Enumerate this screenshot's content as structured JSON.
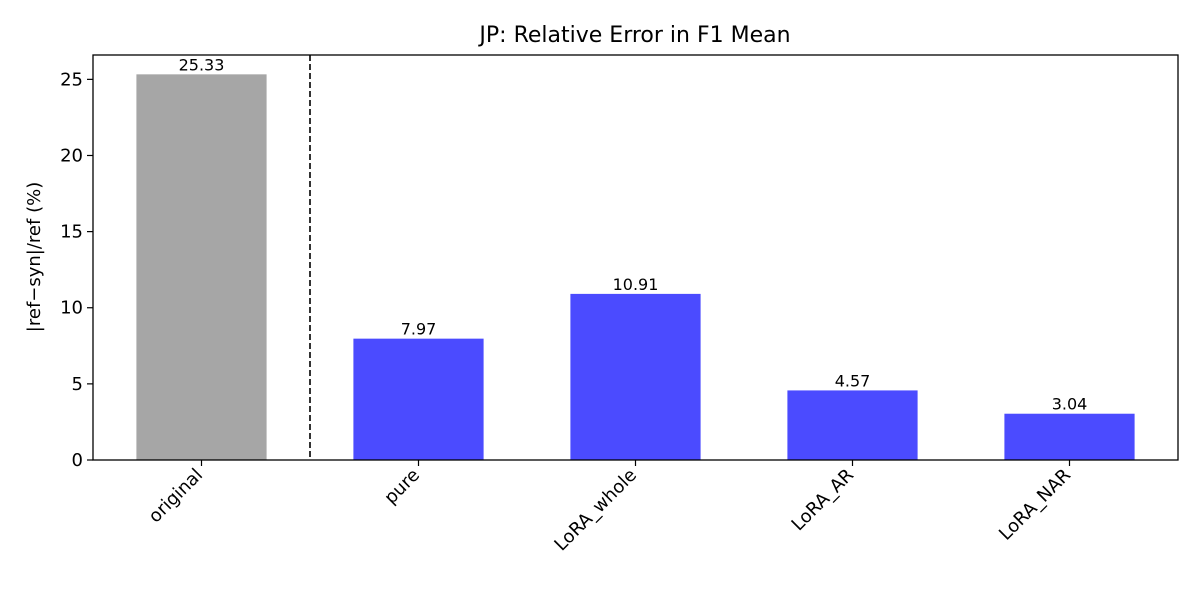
{
  "chart_data": {
    "type": "bar",
    "title": "JP: Relative Error in F1 Mean",
    "xlabel": "",
    "ylabel": "|ref−syn|/ref (%)",
    "categories": [
      "original",
      "pure",
      "LoRA_whole",
      "LoRA_AR",
      "LoRA_NAR"
    ],
    "values": [
      25.33,
      7.97,
      10.91,
      4.57,
      3.04
    ],
    "value_labels": [
      "25.33",
      "7.97",
      "10.91",
      "4.57",
      "3.04"
    ],
    "bar_colors": [
      "#a6a6a6",
      "#4b4bff",
      "#4b4bff",
      "#4b4bff",
      "#4b4bff"
    ],
    "ylim": [
      0,
      26.6
    ],
    "yticks": [
      0,
      5,
      10,
      15,
      20,
      25
    ],
    "separator_after_index": 0,
    "grid": false,
    "legend": "none"
  }
}
